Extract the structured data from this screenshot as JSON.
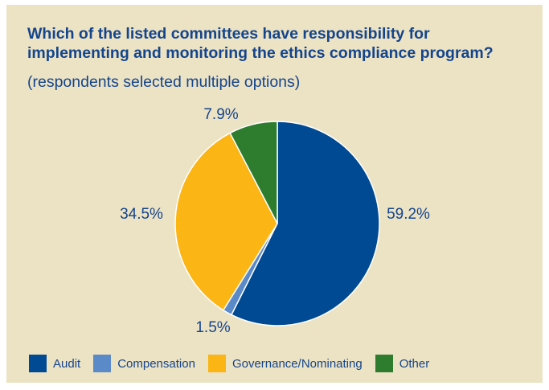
{
  "chart_data": {
    "type": "pie",
    "title": "Which of the listed committees have responsibility for implementing and monitoring the ethics compliance program?",
    "subtitle": "(respondents selected multiple options)",
    "categories": [
      "Audit",
      "Compensation",
      "Governance/Nominating",
      "Other"
    ],
    "values": [
      59.2,
      1.5,
      34.5,
      7.9
    ],
    "labels": [
      "59.2%",
      "1.5%",
      "34.5%",
      "7.9%"
    ],
    "colors": [
      "#004a93",
      "#5b8ac8",
      "#fbb515",
      "#2e7d2f"
    ],
    "legend_position": "bottom",
    "background": "#ece2c4"
  }
}
